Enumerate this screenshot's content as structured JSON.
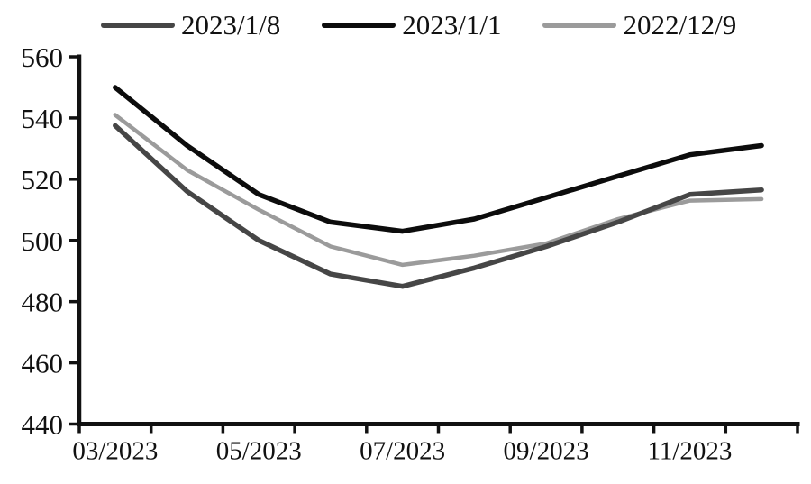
{
  "legend": {
    "items": [
      {
        "label": "2023/1/8",
        "color": "#464646"
      },
      {
        "label": "2023/1/1",
        "color": "#0c0c0c"
      },
      {
        "label": "2022/12/9",
        "color": "#9b9b9b"
      }
    ]
  },
  "chart_data": {
    "type": "line",
    "title": "",
    "xlabel": "",
    "ylabel": "",
    "x": [
      "03/2023",
      "04/2023",
      "05/2023",
      "06/2023",
      "07/2023",
      "08/2023",
      "09/2023",
      "10/2023",
      "11/2023",
      "12/2023"
    ],
    "x_tick_labels": [
      "03/2023",
      "05/2023",
      "07/2023",
      "09/2023",
      "11/2023"
    ],
    "y_ticks": [
      440,
      460,
      480,
      500,
      520,
      540,
      560
    ],
    "ylim": [
      440,
      560
    ],
    "grid": false,
    "legend_position": "top",
    "series": [
      {
        "name": "2023/1/8",
        "color": "#464646",
        "stroke_width": 5.5,
        "values": [
          537.5,
          516,
          500,
          489,
          485,
          491,
          498,
          506,
          515,
          516.5
        ]
      },
      {
        "name": "2023/1/1",
        "color": "#0c0c0c",
        "stroke_width": 5.5,
        "values": [
          550,
          531,
          515,
          506,
          503,
          507,
          514,
          521,
          528,
          531
        ]
      },
      {
        "name": "2022/12/9",
        "color": "#9b9b9b",
        "stroke_width": 4.5,
        "values": [
          541,
          523,
          510,
          498,
          492,
          495,
          499,
          507,
          513,
          513.5
        ]
      }
    ]
  }
}
